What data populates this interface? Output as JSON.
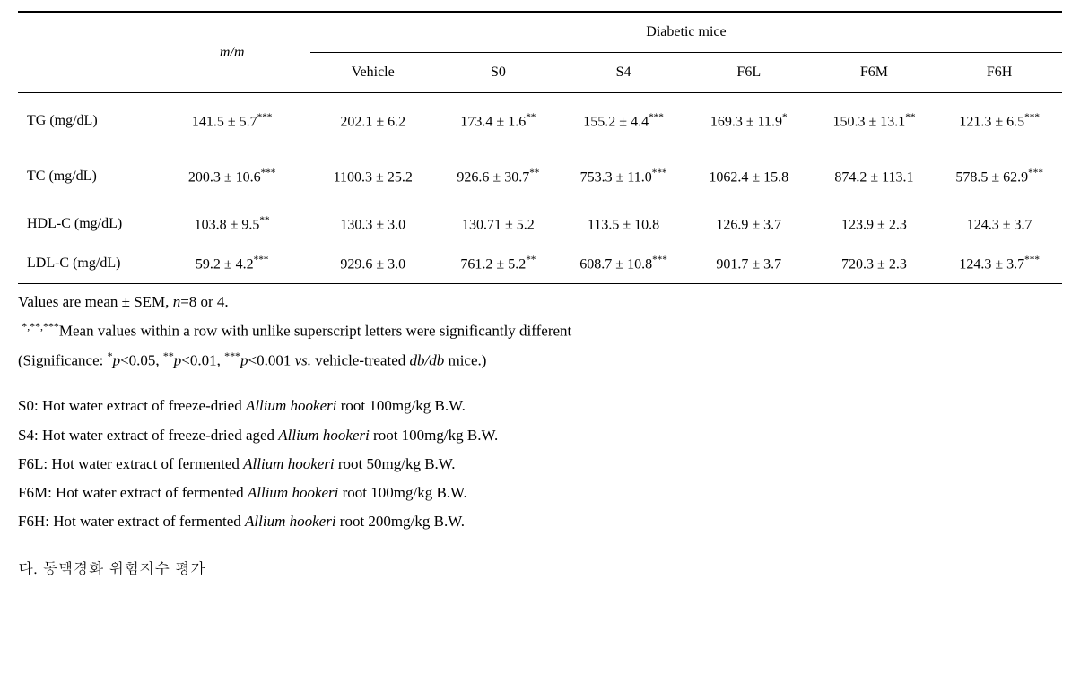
{
  "table": {
    "col_widths": [
      "13%",
      "15%",
      "12%",
      "12%",
      "12%",
      "12%",
      "12%",
      "12%"
    ],
    "header": {
      "mm": "m/m",
      "group": "Diabetic mice",
      "cols": [
        "Vehicle",
        "S0",
        "S4",
        "F6L",
        "F6M",
        "F6H"
      ]
    },
    "rows": [
      {
        "label": "TG (mg/dL)",
        "mm": {
          "v": "141.5 ± 5.7",
          "s": "***"
        },
        "cells": [
          {
            "v": "202.1 ± 6.2",
            "s": ""
          },
          {
            "v": "173.4 ± 1.6",
            "s": "**"
          },
          {
            "v": "155.2 ± 4.4",
            "s": "***"
          },
          {
            "v": "169.3 ± 11.9",
            "s": "*"
          },
          {
            "v": "150.3 ± 13.1",
            "s": "**"
          },
          {
            "v": "121.3 ± 6.5",
            "s": "***"
          }
        ]
      },
      {
        "label": "TC (mg/dL)",
        "mm": {
          "v": "200.3 ± 10.6",
          "s": "***"
        },
        "cells": [
          {
            "v": "1100.3 ± 25.2",
            "s": ""
          },
          {
            "v": "926.6 ± 30.7",
            "s": "**"
          },
          {
            "v": "753.3 ± 11.0",
            "s": "***"
          },
          {
            "v": "1062.4 ± 15.8",
            "s": ""
          },
          {
            "v": "874.2 ± 113.1",
            "s": ""
          },
          {
            "v": "578.5 ± 62.9",
            "s": "***"
          }
        ]
      },
      {
        "label": "HDL-C (mg/dL)",
        "mm": {
          "v": "103.8 ± 9.5",
          "s": "**"
        },
        "cells": [
          {
            "v": "130.3 ± 3.0",
            "s": ""
          },
          {
            "v": "130.71 ± 5.2",
            "s": ""
          },
          {
            "v": "113.5 ± 10.8",
            "s": ""
          },
          {
            "v": "126.9 ± 3.7",
            "s": ""
          },
          {
            "v": "123.9 ± 2.3",
            "s": ""
          },
          {
            "v": "124.3 ± 3.7",
            "s": ""
          }
        ]
      },
      {
        "label": "LDL-C (mg/dL)",
        "mm": {
          "v": "59.2 ± 4.2",
          "s": "***"
        },
        "cells": [
          {
            "v": "929.6 ± 3.0",
            "s": ""
          },
          {
            "v": "761.2 ± 5.2",
            "s": "**"
          },
          {
            "v": "608.7 ± 10.8",
            "s": "***"
          },
          {
            "v": "901.7 ± 3.7",
            "s": ""
          },
          {
            "v": "720.3 ± 2.3",
            "s": ""
          },
          {
            "v": "124.3 ± 3.7",
            "s": "***"
          }
        ]
      }
    ]
  },
  "notes": {
    "line1_a": "Values are mean ± SEM, ",
    "line1_n": "n",
    "line1_b": "=8 or 4.",
    "line2_sup": "*,**,***",
    "line2_a": "Mean values within a row with unlike superscript letters were significantly different",
    "line3_a": "(Significance: ",
    "sig1_s": "*",
    "sig1_p": "p",
    "sig1_t": "<0.05, ",
    "sig2_s": "**",
    "sig2_p": "p",
    "sig2_t": "<0.01, ",
    "sig3_s": "***",
    "sig3_p": "p",
    "sig3_t": "<0.001   ",
    "vs": "vs.",
    "line3_b": " vehicle-treated ",
    "dbdb": "db/db",
    "line3_c": " mice.)",
    "defs": [
      {
        "k": "S0:",
        "t1": " Hot water extract of freeze-dried ",
        "i": "Allium hookeri",
        "t2": " root 100mg/kg B.W."
      },
      {
        "k": "S4:",
        "t1": " Hot water extract of freeze-dried aged ",
        "i": "Allium hookeri",
        "t2": " root 100mg/kg B.W."
      },
      {
        "k": "F6L:",
        "t1": " Hot water extract of fermented ",
        "i": "Allium hookeri",
        "t2": " root 50mg/kg B.W."
      },
      {
        "k": "F6M:",
        "t1": " Hot water extract of fermented ",
        "i": "Allium hookeri",
        "t2": " root 100mg/kg B.W."
      },
      {
        "k": "F6H:",
        "t1": " Hot water extract of fermented ",
        "i": "Allium hookeri",
        "t2": " root 200mg/kg B.W."
      }
    ],
    "hangul": "다. 동맥경화 위험지수 평가"
  }
}
